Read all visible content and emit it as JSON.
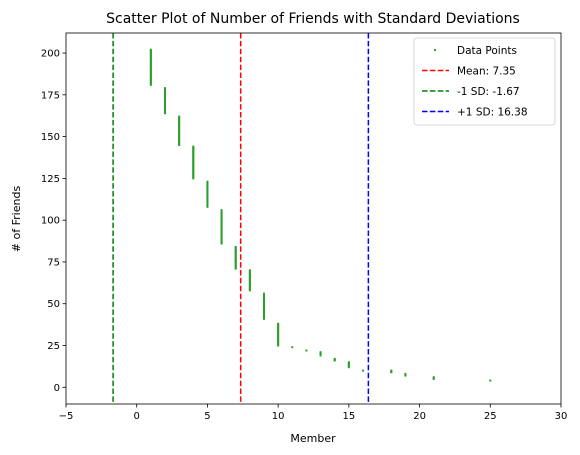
{
  "chart_data": {
    "type": "scatter",
    "title": "Scatter Plot of Number of Friends with Standard Deviations",
    "xlabel": "Member",
    "ylabel": "# of Friends",
    "xlim": [
      -5,
      30
    ],
    "ylim": [
      -10,
      212
    ],
    "xticks": [
      -5,
      0,
      5,
      10,
      15,
      20,
      25,
      30
    ],
    "yticks": [
      0,
      25,
      50,
      75,
      100,
      125,
      150,
      175,
      200
    ],
    "grid": false,
    "legend_placement": "top-right",
    "series": [
      {
        "name": "Data Points",
        "color": "#2ca02c",
        "columns": [
          {
            "x": 1,
            "y_min": 181,
            "y_max": 202
          },
          {
            "x": 2,
            "y_min": 164,
            "y_max": 179
          },
          {
            "x": 3,
            "y_min": 145,
            "y_max": 162
          },
          {
            "x": 4,
            "y_min": 125,
            "y_max": 144
          },
          {
            "x": 5,
            "y_min": 108,
            "y_max": 123
          },
          {
            "x": 6,
            "y_min": 86,
            "y_max": 106
          },
          {
            "x": 7,
            "y_min": 71,
            "y_max": 84
          },
          {
            "x": 8,
            "y_min": 58,
            "y_max": 70
          },
          {
            "x": 9,
            "y_min": 41,
            "y_max": 56
          },
          {
            "x": 10,
            "y_min": 25,
            "y_max": 38
          },
          {
            "x": 11,
            "y_min": 24,
            "y_max": 24
          },
          {
            "x": 12,
            "y_min": 22,
            "y_max": 22
          },
          {
            "x": 13,
            "y_min": 19,
            "y_max": 21
          },
          {
            "x": 14,
            "y_min": 16,
            "y_max": 17
          },
          {
            "x": 15,
            "y_min": 12,
            "y_max": 15
          },
          {
            "x": 16,
            "y_min": 10,
            "y_max": 10
          },
          {
            "x": 18,
            "y_min": 9,
            "y_max": 10
          },
          {
            "x": 19,
            "y_min": 7,
            "y_max": 8
          },
          {
            "x": 21,
            "y_min": 5,
            "y_max": 6
          },
          {
            "x": 25,
            "y_min": 4,
            "y_max": 4
          }
        ]
      }
    ],
    "vlines": [
      {
        "name": "Mean: 7.35",
        "x": 7.35,
        "color": "#ff0000"
      },
      {
        "name": "-1 SD: -1.67",
        "x": -1.67,
        "color": "#008000"
      },
      {
        "name": "+1 SD: 16.38",
        "x": 16.38,
        "color": "#0000ff"
      }
    ]
  }
}
